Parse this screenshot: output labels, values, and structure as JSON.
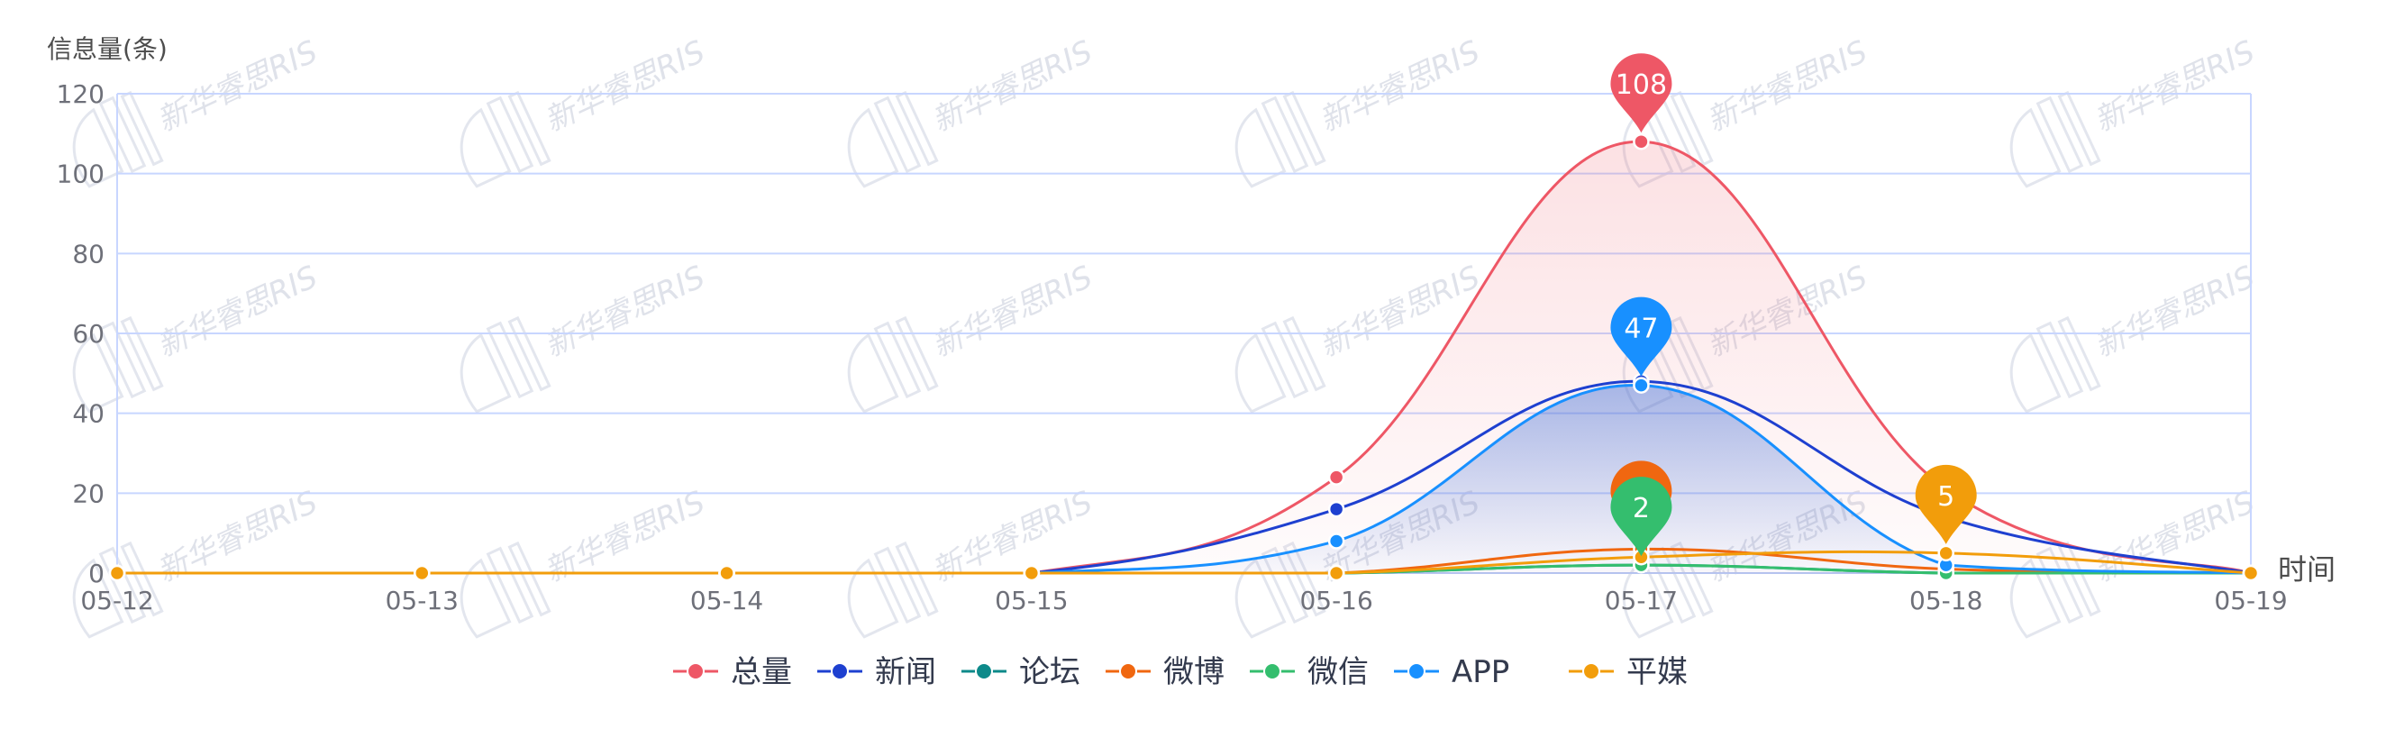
{
  "chart_data": {
    "type": "line",
    "ylabel": "信息量(条)",
    "xlabel": "时间",
    "categories": [
      "05-12",
      "05-13",
      "05-14",
      "05-15",
      "05-16",
      "05-17",
      "05-18",
      "05-19"
    ],
    "ylim": [
      0,
      120
    ],
    "yticks": [
      0,
      20,
      40,
      60,
      80,
      100,
      120
    ],
    "grid": true,
    "legend_position": "bottom-center",
    "smooth": true,
    "series": [
      {
        "name": "总量",
        "color": "#ee5766",
        "values": [
          0,
          0,
          0,
          0,
          24,
          108,
          21,
          0
        ],
        "area": true,
        "pin_label": "108"
      },
      {
        "name": "新闻",
        "color": "#1e40d0",
        "values": [
          0,
          0,
          0,
          0,
          16,
          48,
          14,
          0
        ]
      },
      {
        "name": "论坛",
        "color": "#0d8a8a",
        "values": [
          0,
          0,
          0,
          0,
          0,
          2,
          0,
          0
        ]
      },
      {
        "name": "微博",
        "color": "#f06710",
        "values": [
          0,
          0,
          0,
          0,
          0,
          6,
          1,
          0
        ],
        "pin_label": ""
      },
      {
        "name": "微信",
        "color": "#34be6e",
        "values": [
          0,
          0,
          0,
          0,
          0,
          2,
          0,
          0
        ],
        "pin_label": "2"
      },
      {
        "name": "APP",
        "color": "#1890ff",
        "values": [
          0,
          0,
          0,
          0,
          8,
          47,
          2,
          0
        ],
        "area": true,
        "pin_label": "47"
      },
      {
        "name": "平媒",
        "color": "#f29d0b",
        "values": [
          0,
          0,
          0,
          0,
          0,
          4,
          5,
          0
        ],
        "pin_label": "5",
        "pin_index": 6
      }
    ]
  },
  "watermark": {
    "text": "新华睿思RIS"
  }
}
